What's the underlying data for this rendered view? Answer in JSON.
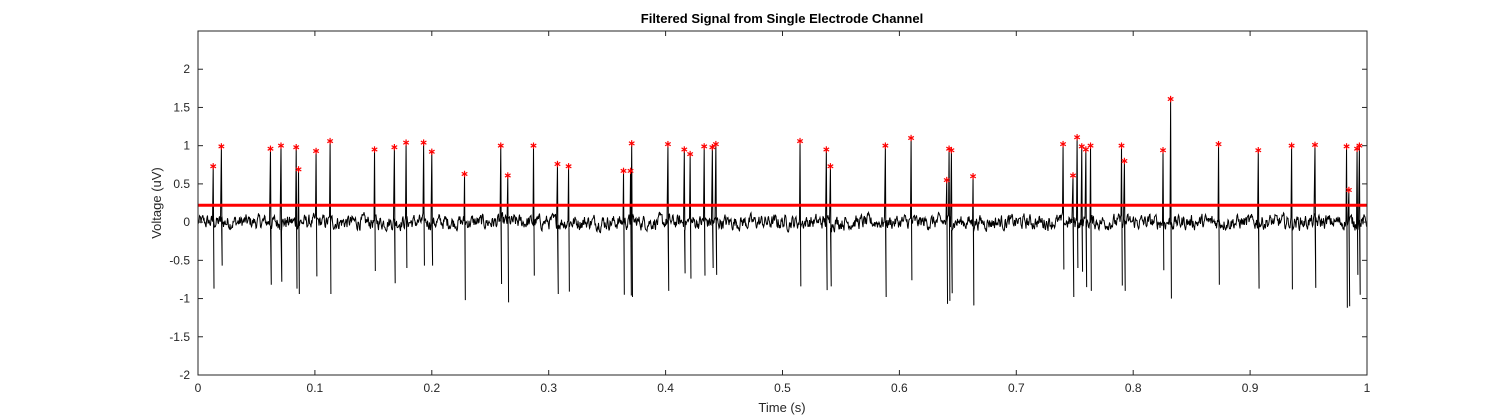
{
  "chart_data": {
    "type": "line",
    "title": "Filtered Signal from Single Electrode Channel",
    "xlabel": "Time (s)",
    "ylabel": "Voltage (uV)",
    "xlim": [
      0,
      1
    ],
    "ylim": [
      -2,
      2.5
    ],
    "xticks": [
      0,
      0.1,
      0.2,
      0.3,
      0.4,
      0.5,
      0.6,
      0.7,
      0.8,
      0.9,
      1
    ],
    "xtick_labels": [
      "0",
      "0.1",
      "0.2",
      "0.3",
      "0.4",
      "0.5",
      "0.6",
      "0.7",
      "0.8",
      "0.9",
      "1"
    ],
    "yticks": [
      -2,
      -1.5,
      -1,
      -0.5,
      0,
      0.5,
      1,
      1.5,
      2
    ],
    "ytick_labels": [
      "-2",
      "-1.5",
      "-1",
      "-0.5",
      "0",
      "0.5",
      "1",
      "1.5",
      "2"
    ],
    "grid": false,
    "threshold": 0.22,
    "signal_noise_amplitude": 0.07,
    "spikes": {
      "x": [
        0.013,
        0.02,
        0.062,
        0.071,
        0.084,
        0.086,
        0.101,
        0.113,
        0.151,
        0.168,
        0.178,
        0.193,
        0.2,
        0.228,
        0.259,
        0.265,
        0.287,
        0.3075,
        0.317,
        0.364,
        0.37,
        0.371,
        0.402,
        0.416,
        0.421,
        0.433,
        0.44,
        0.443,
        0.515,
        0.5375,
        0.541,
        0.588,
        0.61,
        0.6405,
        0.6425,
        0.6445,
        0.663,
        0.74,
        0.7485,
        0.752,
        0.756,
        0.7595,
        0.7635,
        0.79,
        0.7925,
        0.8255,
        0.832,
        0.873,
        0.907,
        0.9355,
        0.9555,
        0.9825,
        0.9845,
        0.9915,
        0.9935
      ],
      "y": [
        0.73,
        0.99,
        0.96,
        1.0,
        0.98,
        0.69,
        0.93,
        1.06,
        0.95,
        0.98,
        1.04,
        1.04,
        0.92,
        0.63,
        1.0,
        0.61,
        1.0,
        0.76,
        0.73,
        0.67,
        0.67,
        1.03,
        1.02,
        0.95,
        0.89,
        0.99,
        0.98,
        1.02,
        1.06,
        0.95,
        0.73,
        1.0,
        1.1,
        0.55,
        0.96,
        0.94,
        0.6,
        1.02,
        0.61,
        1.11,
        0.99,
        0.95,
        1.0,
        1.0,
        0.8,
        0.94,
        1.61,
        1.02,
        0.94,
        1.0,
        1.01,
        0.99,
        0.42,
        0.96,
        1.0
      ],
      "neg_y": [
        -0.87,
        -0.57,
        -0.82,
        -0.78,
        -0.87,
        -0.94,
        -0.71,
        -0.94,
        -0.64,
        -0.8,
        -0.6,
        -0.57,
        -0.57,
        -1.02,
        -0.81,
        -1.05,
        -0.7,
        -0.94,
        -0.91,
        -0.95,
        -0.96,
        -0.98,
        -0.9,
        -0.67,
        -0.74,
        -0.7,
        -0.6,
        -0.69,
        -0.84,
        -0.89,
        -0.84,
        -0.98,
        -0.76,
        -1.07,
        -1.03,
        -0.93,
        -1.09,
        -0.62,
        -0.98,
        -0.6,
        -0.65,
        -0.85,
        -0.9,
        -0.83,
        -0.9,
        -0.63,
        -1.0,
        -0.82,
        -0.87,
        -0.88,
        -0.86,
        -1.12,
        -1.1,
        -0.69,
        -0.95
      ]
    },
    "colors": {
      "signal": "#000000",
      "threshold": "#ff0000",
      "markers": "#ff0000",
      "axes": "#262626"
    }
  }
}
